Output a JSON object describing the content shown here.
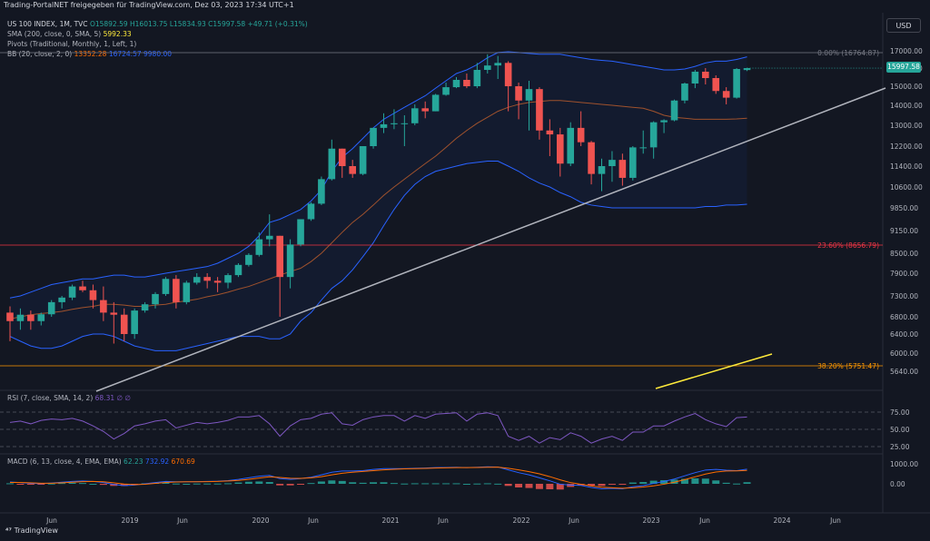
{
  "header": {
    "source": "Trading-PortalNET freigegeben für TradingView.com, Dez 03, 2023 17:34 UTC+1"
  },
  "currency": "USD",
  "legend": {
    "symbol": "US 100 INDEX, 1M, TVC",
    "ohlc": "O15892.59  H16013.75  L15834.93  C15997.58  +49.71 (+0.31%)",
    "sma_label": "SMA (200, close, 0, SMA, 5)",
    "sma_value": "5992.33",
    "pivots_label": "Pivots (Traditional, Monthly, 1, Left, 1)",
    "bb_label": "BB (20, close, 2, 0)",
    "bb_basis": "13352.28",
    "bb_upper": "16724.57",
    "bb_lower": "9980.00",
    "rsi_label": "RSI (7, close, SMA, 14, 2)",
    "rsi_values": "68.31  ∅  ∅",
    "macd_label": "MACD (6, 13, close, 4, EMA, EMA)",
    "macd_v1": "62.23",
    "macd_v2": "732.92",
    "macd_v3": "670.69"
  },
  "price_badge": "15997.58",
  "fib": [
    {
      "label": "0.00% (16764.87)",
      "color": "#787b86"
    },
    {
      "label": "23.60% (8656.79)",
      "color": "#f23645"
    },
    {
      "label": "38.20% (5751.47)",
      "color": "#ff9800"
    }
  ],
  "brand": "TradingView",
  "chart_data": {
    "type": "candlestick",
    "title": "US 100 INDEX, 1M, TVC",
    "price_axis_ticks": [
      "17000.00",
      "16000.00",
      "15000.00",
      "14000.00",
      "13000.00",
      "12200.00",
      "11400.00",
      "10600.00",
      "9850.00",
      "9150.00",
      "8500.00",
      "7900.00",
      "7300.00",
      "6800.00",
      "6400.00",
      "6000.00",
      "5640.00"
    ],
    "rsi_axis_ticks": [
      "75.00",
      "50.00",
      "25.00"
    ],
    "macd_axis_ticks": [
      "1000.00",
      "0.00"
    ],
    "x_ticks": [
      "Jun",
      "2019",
      "Jun",
      "2020",
      "Jun",
      "2021",
      "Jun",
      "2022",
      "Jun",
      "2023",
      "Jun",
      "2024",
      "Jun"
    ],
    "ohlc": [
      [
        6900,
        7050,
        6250,
        6700
      ],
      [
        6700,
        7000,
        6500,
        6850
      ],
      [
        6850,
        6950,
        6500,
        6700
      ],
      [
        6700,
        6900,
        6600,
        6860
      ],
      [
        6860,
        7200,
        6800,
        7150
      ],
      [
        7150,
        7300,
        7000,
        7260
      ],
      [
        7260,
        7600,
        7200,
        7550
      ],
      [
        7550,
        7700,
        7400,
        7450
      ],
      [
        7450,
        7600,
        7000,
        7200
      ],
      [
        7200,
        7550,
        6700,
        6900
      ],
      [
        6900,
        7150,
        6200,
        6850
      ],
      [
        6850,
        7000,
        6250,
        6400
      ],
      [
        6400,
        7000,
        6300,
        6950
      ],
      [
        6950,
        7150,
        6900,
        7100
      ],
      [
        7100,
        7400,
        7000,
        7350
      ],
      [
        7350,
        7800,
        7300,
        7750
      ],
      [
        7750,
        7850,
        7000,
        7150
      ],
      [
        7150,
        7700,
        7100,
        7650
      ],
      [
        7650,
        7900,
        7600,
        7800
      ],
      [
        7800,
        7900,
        7500,
        7700
      ],
      [
        7700,
        7800,
        7400,
        7650
      ],
      [
        7650,
        7900,
        7500,
        7850
      ],
      [
        7850,
        8200,
        7800,
        8150
      ],
      [
        8150,
        8500,
        8100,
        8450
      ],
      [
        8450,
        9100,
        8400,
        8900
      ],
      [
        8900,
        9650,
        8700,
        9000
      ],
      [
        9000,
        9000,
        6800,
        7800
      ],
      [
        7800,
        8900,
        7500,
        8750
      ],
      [
        8750,
        9500,
        8700,
        9500
      ],
      [
        9500,
        10050,
        9450,
        10000
      ],
      [
        10000,
        11000,
        9950,
        10900
      ],
      [
        10900,
        12450,
        10850,
        12100
      ],
      [
        12100,
        12100,
        10950,
        11400
      ],
      [
        11400,
        11650,
        10950,
        11100
      ],
      [
        11100,
        12200,
        11050,
        12200
      ],
      [
        12200,
        12900,
        12100,
        12900
      ],
      [
        12900,
        13600,
        12700,
        13050
      ],
      [
        13050,
        13800,
        12850,
        13100
      ],
      [
        13100,
        13500,
        12200,
        13100
      ],
      [
        13100,
        14050,
        13000,
        13850
      ],
      [
        13850,
        14200,
        13350,
        13700
      ],
      [
        13700,
        14600,
        13700,
        14550
      ],
      [
        14550,
        15200,
        14500,
        14950
      ],
      [
        14950,
        15500,
        14900,
        15350
      ],
      [
        15350,
        15700,
        14900,
        15000
      ],
      [
        15000,
        16300,
        14900,
        15900
      ],
      [
        15900,
        16800,
        15700,
        16150
      ],
      [
        16150,
        16700,
        15400,
        16300
      ],
      [
        16300,
        16400,
        13700,
        15000
      ],
      [
        15000,
        15200,
        13300,
        14250
      ],
      [
        14250,
        15300,
        12800,
        14850
      ],
      [
        14850,
        14950,
        12450,
        12800
      ],
      [
        12800,
        13300,
        11800,
        12650
      ],
      [
        12650,
        12900,
        11000,
        11500
      ],
      [
        11500,
        13150,
        11400,
        12900
      ],
      [
        12900,
        13700,
        12200,
        12350
      ],
      [
        12350,
        12400,
        10700,
        11100
      ],
      [
        11100,
        11700,
        10450,
        11400
      ],
      [
        11400,
        12000,
        10800,
        11650
      ],
      [
        11650,
        11900,
        10650,
        10950
      ],
      [
        10950,
        12200,
        10850,
        12150
      ],
      [
        12150,
        12800,
        11900,
        12150
      ],
      [
        12150,
        13200,
        11700,
        13150
      ],
      [
        13150,
        13300,
        12700,
        13250
      ],
      [
        13250,
        14300,
        13200,
        14250
      ],
      [
        14250,
        15200,
        14100,
        15150
      ],
      [
        15150,
        15900,
        14900,
        15800
      ],
      [
        15800,
        16000,
        15100,
        15450
      ],
      [
        15450,
        15600,
        14600,
        14750
      ],
      [
        14750,
        14950,
        14050,
        14400
      ],
      [
        14400,
        16000,
        14350,
        15950
      ],
      [
        15892,
        16014,
        15835,
        15998
      ]
    ],
    "bb_upper": [
      7250,
      7300,
      7400,
      7500,
      7600,
      7650,
      7700,
      7750,
      7750,
      7800,
      7850,
      7850,
      7800,
      7800,
      7850,
      7900,
      7950,
      8000,
      8050,
      8100,
      8200,
      8350,
      8500,
      8700,
      9000,
      9400,
      9500,
      9650,
      9800,
      10100,
      10500,
      11200,
      11750,
      12100,
      12500,
      12900,
      13300,
      13600,
      13900,
      14200,
      14500,
      14900,
      15300,
      15700,
      15900,
      16200,
      16600,
      16900,
      16950,
      16900,
      16850,
      16800,
      16800,
      16800,
      16700,
      16600,
      16500,
      16450,
      16400,
      16300,
      16200,
      16100,
      16000,
      15900,
      15900,
      15950,
      16100,
      16300,
      16400,
      16400,
      16500,
      16650
    ],
    "bb_lower": [
      6350,
      6250,
      6150,
      6100,
      6100,
      6150,
      6250,
      6350,
      6400,
      6400,
      6350,
      6250,
      6150,
      6100,
      6050,
      6050,
      6050,
      6100,
      6150,
      6200,
      6250,
      6300,
      6350,
      6350,
      6350,
      6300,
      6300,
      6400,
      6700,
      6900,
      7200,
      7500,
      7700,
      8000,
      8400,
      8800,
      9300,
      9800,
      10300,
      10700,
      11000,
      11200,
      11300,
      11400,
      11500,
      11550,
      11600,
      11600,
      11400,
      11200,
      10950,
      10750,
      10600,
      10400,
      10250,
      10050,
      9950,
      9900,
      9850,
      9850,
      9850,
      9850,
      9850,
      9850,
      9850,
      9850,
      9850,
      9900,
      9900,
      9950,
      9950,
      9980
    ],
    "bb_basis": [
      6750,
      6800,
      6850,
      6880,
      6900,
      6930,
      6980,
      7020,
      7050,
      7100,
      7100,
      7080,
      7050,
      7050,
      7080,
      7100,
      7150,
      7180,
      7220,
      7280,
      7330,
      7400,
      7480,
      7550,
      7650,
      7750,
      7850,
      7950,
      8050,
      8250,
      8500,
      8800,
      9100,
      9400,
      9650,
      9950,
      10300,
      10600,
      10900,
      11200,
      11500,
      11800,
      12150,
      12500,
      12800,
      13100,
      13400,
      13700,
      13900,
      14050,
      14150,
      14200,
      14250,
      14250,
      14200,
      14150,
      14100,
      14050,
      14000,
      13950,
      13900,
      13850,
      13700,
      13500,
      13400,
      13350,
      13300,
      13300,
      13300,
      13300,
      13320,
      13352
    ],
    "trendline": [
      [
        0,
        5200
      ],
      [
        71,
        13800
      ]
    ],
    "rsi": [
      60,
      62,
      58,
      63,
      65,
      64,
      66,
      62,
      55,
      47,
      36,
      44,
      55,
      58,
      62,
      64,
      52,
      56,
      60,
      58,
      60,
      63,
      68,
      68,
      70,
      58,
      40,
      55,
      64,
      66,
      72,
      74,
      58,
      56,
      64,
      68,
      70,
      70,
      62,
      70,
      66,
      72,
      73,
      74,
      62,
      72,
      74,
      70,
      40,
      34,
      40,
      30,
      38,
      35,
      45,
      40,
      30,
      36,
      40,
      34,
      46,
      46,
      55,
      55,
      62,
      68,
      73,
      64,
      58,
      54,
      67,
      68
    ],
    "macd": [
      90,
      60,
      20,
      10,
      40,
      80,
      120,
      140,
      120,
      60,
      -30,
      -90,
      -60,
      0,
      60,
      120,
      100,
      100,
      110,
      120,
      130,
      160,
      220,
      300,
      380,
      420,
      260,
      220,
      260,
      330,
      450,
      580,
      640,
      640,
      660,
      720,
      760,
      760,
      760,
      780,
      790,
      810,
      820,
      830,
      810,
      830,
      850,
      840,
      700,
      560,
      450,
      300,
      150,
      -20,
      -60,
      -80,
      -180,
      -250,
      -230,
      -250,
      -150,
      -90,
      20,
      120,
      240,
      400,
      560,
      690,
      720,
      680,
      660,
      733
    ],
    "macd_signal": [
      70,
      70,
      50,
      30,
      30,
      50,
      80,
      110,
      120,
      100,
      50,
      -10,
      -40,
      -20,
      20,
      70,
      90,
      100,
      100,
      110,
      120,
      140,
      170,
      220,
      290,
      350,
      320,
      280,
      270,
      300,
      360,
      450,
      530,
      580,
      620,
      660,
      700,
      730,
      750,
      760,
      770,
      790,
      800,
      810,
      810,
      820,
      830,
      835,
      780,
      700,
      610,
      500,
      360,
      200,
      60,
      -20,
      -110,
      -170,
      -200,
      -220,
      -200,
      -160,
      -100,
      -20,
      80,
      210,
      350,
      490,
      590,
      640,
      650,
      671
    ]
  }
}
